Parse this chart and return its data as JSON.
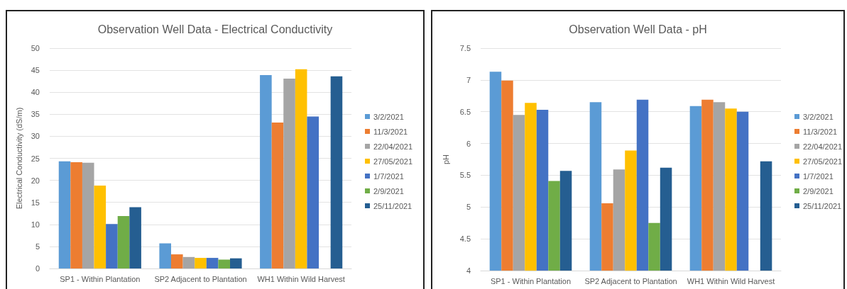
{
  "chart_data": [
    {
      "type": "bar",
      "title": "Observation Well Data - Electrical Conductivity",
      "ylabel": "Electrical Conductivity (dS/m)",
      "categories": [
        "SP1 - Within Plantation",
        "SP2 Adjacent to Plantation",
        "WH1 Within Wild Harvest"
      ],
      "series": [
        {
          "name": "3/2/2021",
          "color": "#5b9bd5",
          "values": [
            24.3,
            5.7,
            43.9
          ]
        },
        {
          "name": "11/3/2021",
          "color": "#ed7d31",
          "values": [
            24.1,
            3.2,
            33.1
          ]
        },
        {
          "name": "22/04/2021",
          "color": "#a5a5a5",
          "values": [
            24.0,
            2.6,
            43.1
          ]
        },
        {
          "name": "27/05/2021",
          "color": "#ffc000",
          "values": [
            18.8,
            2.4,
            45.2
          ]
        },
        {
          "name": "1/7/2021",
          "color": "#4472c4",
          "values": [
            10.1,
            2.4,
            34.5
          ]
        },
        {
          "name": "2/9/2021",
          "color": "#70ad47",
          "values": [
            11.9,
            2.0,
            null
          ]
        },
        {
          "name": "25/11/2021",
          "color": "#255e91",
          "values": [
            13.9,
            2.3,
            43.6
          ]
        }
      ],
      "ylim": [
        0,
        50
      ],
      "yticks": [
        0,
        5,
        10,
        15,
        20,
        25,
        30,
        35,
        40,
        45,
        50
      ],
      "grid": "y",
      "legend": "right"
    },
    {
      "type": "bar",
      "title": "Observation Well Data - pH",
      "ylabel": "pH",
      "categories": [
        "SP1 - Within Plantation",
        "SP2 Adjacent to Plantation",
        "WH1 Within Wild Harvest"
      ],
      "series": [
        {
          "name": "3/2/2021",
          "color": "#5b9bd5",
          "values": [
            7.13,
            6.65,
            6.59
          ]
        },
        {
          "name": "11/3/2021",
          "color": "#ed7d31",
          "values": [
            6.99,
            5.06,
            6.69
          ]
        },
        {
          "name": "22/04/2021",
          "color": "#a5a5a5",
          "values": [
            6.45,
            5.59,
            6.65
          ]
        },
        {
          "name": "27/05/2021",
          "color": "#ffc000",
          "values": [
            6.64,
            5.89,
            6.55
          ]
        },
        {
          "name": "1/7/2021",
          "color": "#4472c4",
          "values": [
            6.53,
            6.69,
            6.5
          ]
        },
        {
          "name": "2/9/2021",
          "color": "#70ad47",
          "values": [
            5.41,
            4.75,
            null
          ]
        },
        {
          "name": "25/11/2021",
          "color": "#255e91",
          "values": [
            5.57,
            5.62,
            5.72
          ]
        }
      ],
      "ylim": [
        4,
        7.5
      ],
      "yticks": [
        4,
        4.5,
        5,
        5.5,
        6,
        6.5,
        7,
        7.5
      ],
      "grid": "y",
      "legend": "right"
    }
  ]
}
